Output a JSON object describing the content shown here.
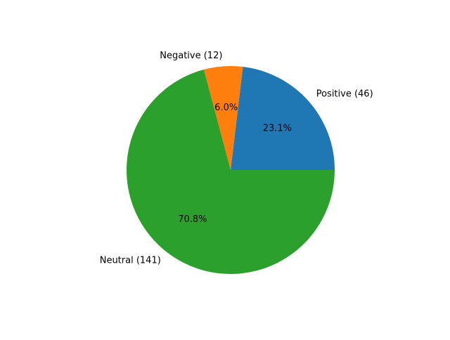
{
  "chart_data": {
    "type": "pie",
    "title": "",
    "slices": [
      {
        "label": "Positive (46)",
        "value": 46,
        "pct_label": "23.1%",
        "color": "#1f77b4"
      },
      {
        "label": "Negative (12)",
        "value": 12,
        "pct_label": "6.0%",
        "color": "#ff7f0e"
      },
      {
        "label": "Neutral (141)",
        "value": 141,
        "pct_label": "70.8%",
        "color": "#2ca02c"
      }
    ],
    "start_angle_deg": 0,
    "direction": "counterclockwise",
    "legend": "none"
  }
}
